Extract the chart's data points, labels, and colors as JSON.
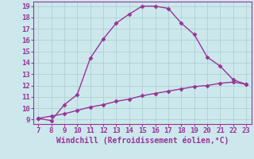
{
  "line1_x": [
    7,
    8,
    9,
    10,
    11,
    12,
    13,
    14,
    15,
    16,
    17,
    18,
    19,
    20,
    21,
    22,
    23
  ],
  "line1_y": [
    9.1,
    8.9,
    10.3,
    11.2,
    14.4,
    16.1,
    17.5,
    18.3,
    19.0,
    19.0,
    18.8,
    17.5,
    16.5,
    14.5,
    13.7,
    12.5,
    12.1
  ],
  "line2_x": [
    7,
    8,
    9,
    10,
    11,
    12,
    13,
    14,
    15,
    16,
    17,
    18,
    19,
    20,
    21,
    22,
    23
  ],
  "line2_y": [
    9.1,
    9.3,
    9.5,
    9.8,
    10.1,
    10.3,
    10.6,
    10.8,
    11.1,
    11.3,
    11.5,
    11.7,
    11.9,
    12.0,
    12.2,
    12.3,
    12.1
  ],
  "line_color": "#993399",
  "marker": "D",
  "marker_size": 2.5,
  "bg_color": "#cce8ec",
  "grid_color": "#aacccc",
  "xlabel": "Windchill (Refroidissement éolien,°C)",
  "xlabel_color": "#993399",
  "xlabel_fontsize": 7,
  "tick_color": "#993399",
  "tick_fontsize": 6.5,
  "xlim": [
    6.6,
    23.4
  ],
  "ylim": [
    8.6,
    19.4
  ],
  "xticks": [
    7,
    8,
    9,
    10,
    11,
    12,
    13,
    14,
    15,
    16,
    17,
    18,
    19,
    20,
    21,
    22,
    23
  ],
  "yticks": [
    9,
    10,
    11,
    12,
    13,
    14,
    15,
    16,
    17,
    18,
    19
  ],
  "line_width": 1.0
}
